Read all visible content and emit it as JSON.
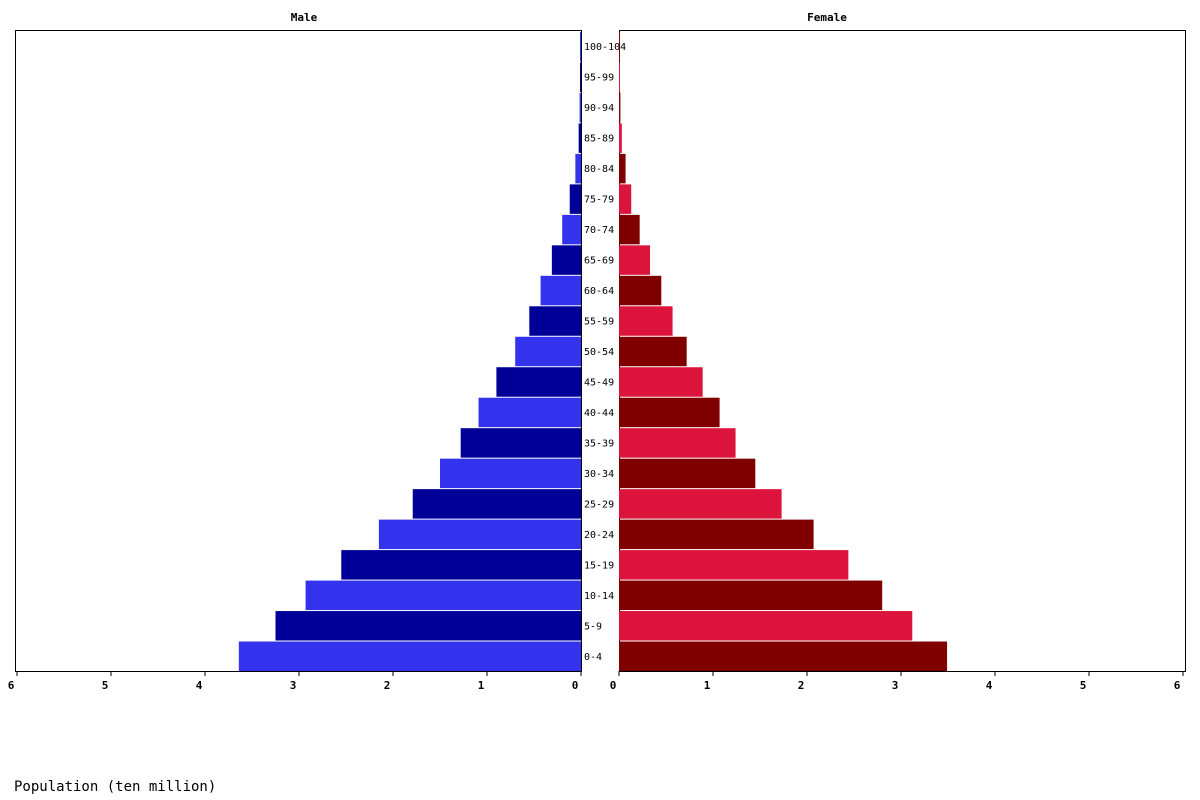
{
  "chart_data": {
    "type": "bar",
    "subtype": "population-pyramid",
    "categories": [
      "0-4",
      "5-9",
      "10-14",
      "15-19",
      "20-24",
      "25-29",
      "30-34",
      "35-39",
      "40-44",
      "45-49",
      "50-54",
      "55-59",
      "60-64",
      "65-69",
      "70-74",
      "75-79",
      "80-84",
      "85-89",
      "90-94",
      "95-99",
      "100-104"
    ],
    "category_labels": [
      "0-4",
      "5-9",
      "10-14",
      "15-19",
      "20-24",
      "25-29",
      "30-34",
      "35-39",
      "40-44",
      "45-49",
      "50-54",
      "55-59",
      "60-64",
      "65-69",
      "70-74",
      "75-79",
      "80-84",
      "85-89",
      "90-94",
      "95-99",
      "100-104"
    ],
    "series": [
      {
        "name": "Male",
        "values": [
          3.64,
          3.25,
          2.93,
          2.55,
          2.15,
          1.79,
          1.5,
          1.28,
          1.09,
          0.9,
          0.7,
          0.55,
          0.43,
          0.31,
          0.2,
          0.12,
          0.06,
          0.025,
          0.015,
          0.008,
          0.004
        ],
        "colors": [
          "#3333ee",
          "#000099"
        ]
      },
      {
        "name": "Female",
        "values": [
          3.49,
          3.12,
          2.8,
          2.44,
          2.07,
          1.73,
          1.45,
          1.24,
          1.07,
          0.89,
          0.72,
          0.57,
          0.45,
          0.33,
          0.22,
          0.13,
          0.07,
          0.03,
          0.015,
          0.008,
          0.004
        ],
        "colors": [
          "#800000",
          "#dc143c"
        ]
      }
    ],
    "titles": {
      "left": "Male",
      "right": "Female"
    },
    "x_ticks": [
      "0",
      "1",
      "2",
      "3",
      "4",
      "5",
      "6"
    ],
    "xlim": [
      0,
      6
    ],
    "xlabel": "Population (ten million)",
    "grid": false
  }
}
